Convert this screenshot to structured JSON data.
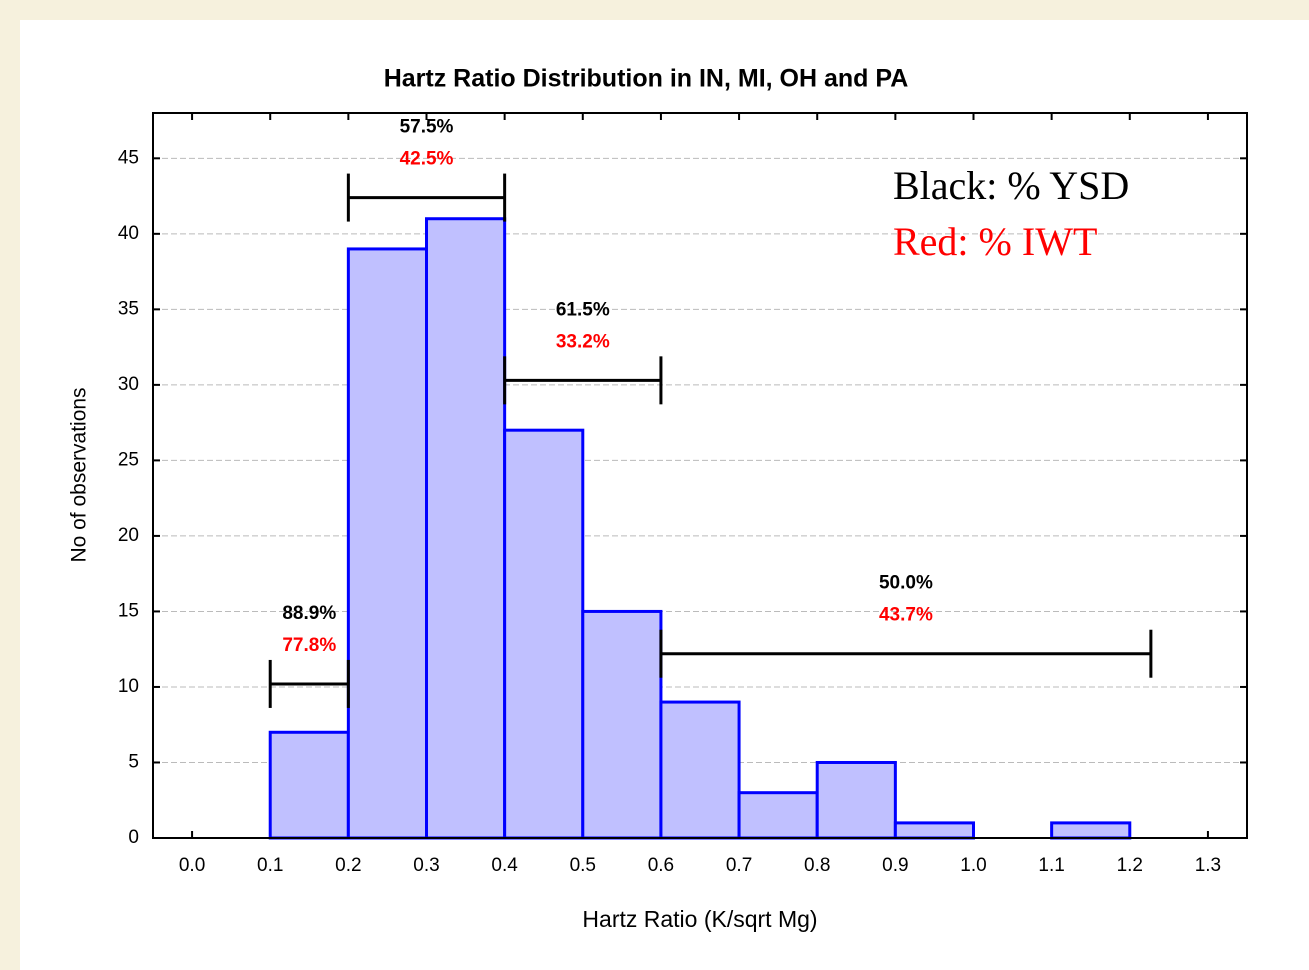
{
  "chart_data": {
    "type": "histogram",
    "title": "Hartz Ratio Distribution in IN, MI, OH and PA",
    "x_label": "Hartz Ratio (K/sqrt Mg)",
    "y_label": "No of observations",
    "bins": [
      0.1,
      0.2,
      0.3,
      0.4,
      0.5,
      0.6,
      0.7,
      0.8,
      0.9,
      1.0,
      1.1,
      1.2
    ],
    "values": [
      7,
      39,
      41,
      27,
      15,
      9,
      3,
      5,
      1,
      0,
      1
    ],
    "color": "#c0c0ff",
    "edge_color": "#0000ff",
    "xlim": [
      -0.05,
      1.35
    ],
    "ylim": [
      0,
      48
    ],
    "xticks": [
      {
        "value": 0,
        "label": "0.0"
      },
      0.1,
      0.2,
      0.3,
      0.4,
      0.5,
      0.6,
      0.7,
      0.8,
      0.9,
      {
        "value": 1,
        "label": "1.0"
      },
      1.1,
      1.2,
      1.3
    ],
    "yticks": [
      0,
      5,
      10,
      15,
      20,
      25,
      30,
      35,
      40,
      45
    ],
    "grid": true,
    "legend_notes": [
      {
        "text": "Black: % YSD",
        "color": "#000000"
      },
      {
        "text": "Red: % IWT",
        "color": "#ff0000"
      }
    ],
    "annotations": [
      {
        "x": [
          0.1,
          0.2
        ],
        "y": 10.2,
        "ysd": "88.9%",
        "iwt": "77.8%"
      },
      {
        "x": [
          0.2,
          0.4
        ],
        "y": 42.4,
        "ysd": "57.5%",
        "iwt": "42.5%"
      },
      {
        "x": [
          0.4,
          0.6
        ],
        "y": 30.3,
        "ysd": "61.5%",
        "iwt": "33.2%"
      },
      {
        "x": [
          0.6,
          1.227
        ],
        "y": 12.2,
        "ysd": "50.0%",
        "iwt": "43.7%"
      }
    ]
  }
}
